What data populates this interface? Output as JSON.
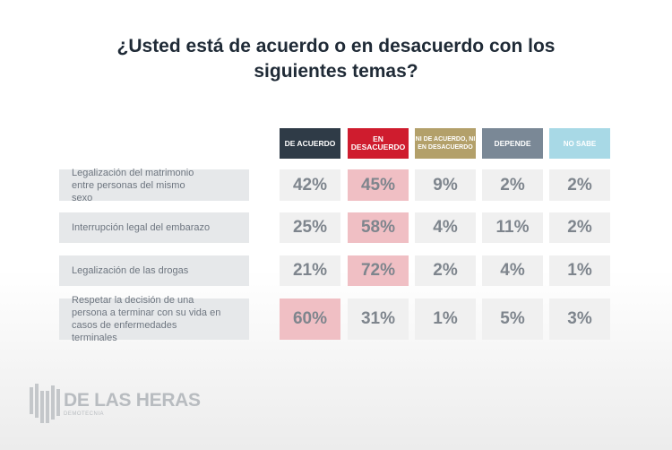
{
  "title_line1": "¿Usted está de acuerdo o en desacuerdo con los",
  "title_line2": "siguientes temas?",
  "colors": {
    "de_acuerdo": "#2f3b47",
    "en_desacuerdo": "#cf1c2e",
    "ni_ni": "#b3a06a",
    "depende": "#7a8896",
    "no_sabe": "#a8d9e6",
    "highlight": "#f0bfc4"
  },
  "chart_data": {
    "type": "table",
    "columns": [
      "DE ACUERDO",
      "EN DESACUERDO",
      "NI DE ACUERDO, NI EN DESACUERDO",
      "DEPENDE",
      "NO SABE"
    ],
    "rows": [
      {
        "label": "Legalización del matrimonio entre personas del mismo sexo",
        "values": [
          "42%",
          "45%",
          "9%",
          "2%",
          "2%"
        ],
        "highlight": 1
      },
      {
        "label": "Interrupción legal del embarazo",
        "values": [
          "25%",
          "58%",
          "4%",
          "11%",
          "2%"
        ],
        "highlight": 1
      },
      {
        "label": "Legalización de las drogas",
        "values": [
          "21%",
          "72%",
          "2%",
          "4%",
          "1%"
        ],
        "highlight": 1
      },
      {
        "label": "Respetar la decisión de una persona a terminar con su vida en casos de enfermedades terminales",
        "values": [
          "60%",
          "31%",
          "1%",
          "5%",
          "3%"
        ],
        "highlight": 0
      }
    ]
  },
  "logo": {
    "name": "DE LAS HERAS",
    "sub": "DEMOTECNIA"
  }
}
